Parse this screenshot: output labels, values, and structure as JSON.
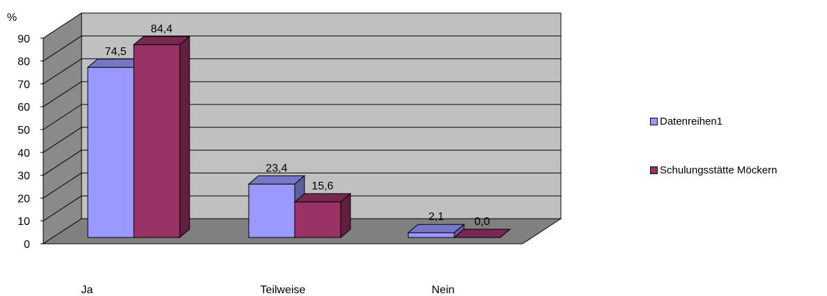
{
  "chart_data": {
    "type": "bar",
    "title": "",
    "ylabel": "%",
    "xlabel": "",
    "ylim": [
      0,
      90
    ],
    "yticks": [
      0,
      10,
      20,
      30,
      40,
      50,
      60,
      70,
      80,
      90
    ],
    "ytick_labels": [
      "0",
      "10",
      "20",
      "30",
      "40",
      "50",
      "60",
      "70",
      "80",
      "90"
    ],
    "categories": [
      "Ja",
      "Teilweise",
      "Nein"
    ],
    "series": [
      {
        "name": "Datenreihen1",
        "values": [
          74.5,
          23.4,
          2.1
        ],
        "labels": [
          "74,5",
          "23,4",
          "2,1"
        ],
        "color": "#9999ff"
      },
      {
        "name": "Schulungsstätte Möckern",
        "values": [
          84.4,
          15.6,
          0.0
        ],
        "labels": [
          "84,4",
          "15,6",
          "0,0"
        ],
        "color": "#993366"
      }
    ],
    "grid": true,
    "legend_position": "right",
    "style": "3d-clustered-column",
    "wall_color": "#c0c0c0",
    "floor_color": "#808080"
  }
}
